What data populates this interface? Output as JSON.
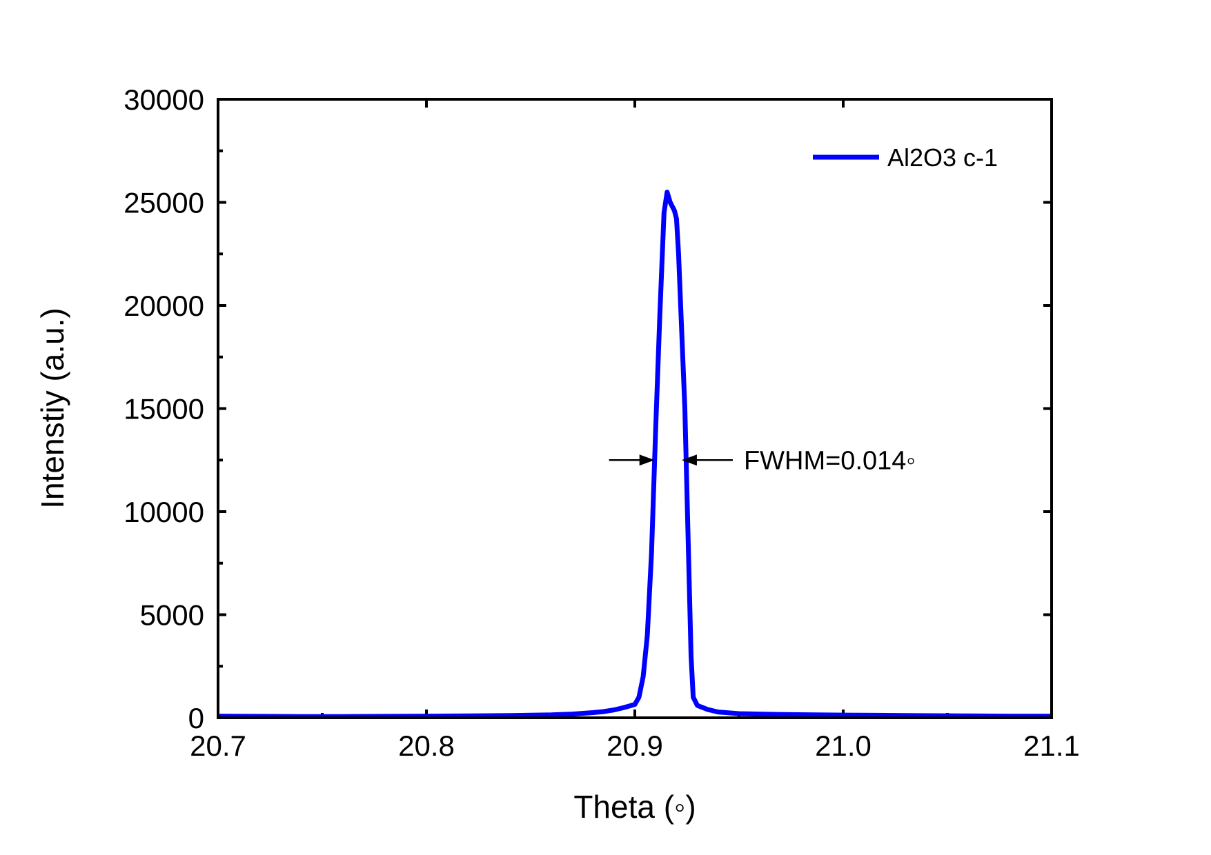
{
  "chart_data": {
    "type": "line",
    "title": "",
    "xlabel": "Theta (◦)",
    "ylabel": "Intenstiy (a.u.)",
    "xlim": [
      20.7,
      21.1
    ],
    "ylim": [
      0,
      30000
    ],
    "x_ticks": [
      20.7,
      20.8,
      20.9,
      21.0,
      21.1
    ],
    "x_tick_labels": [
      "20.7",
      "20.8",
      "20.9",
      "21.0",
      "21.1"
    ],
    "y_ticks": [
      0,
      5000,
      10000,
      15000,
      20000,
      25000,
      30000
    ],
    "y_tick_labels": [
      "0",
      "5000",
      "10000",
      "15000",
      "20000",
      "25000",
      "30000"
    ],
    "grid": false,
    "legend_position": "top-right",
    "series": [
      {
        "name": "Al2O3 c-1",
        "color": "#0000ff",
        "points": [
          [
            20.7,
            80
          ],
          [
            20.72,
            70
          ],
          [
            20.74,
            60
          ],
          [
            20.76,
            60
          ],
          [
            20.78,
            70
          ],
          [
            20.8,
            80
          ],
          [
            20.82,
            90
          ],
          [
            20.84,
            110
          ],
          [
            20.86,
            140
          ],
          [
            20.87,
            180
          ],
          [
            20.88,
            250
          ],
          [
            20.885,
            300
          ],
          [
            20.89,
            380
          ],
          [
            20.895,
            500
          ],
          [
            20.9,
            650
          ],
          [
            20.902,
            1000
          ],
          [
            20.904,
            2000
          ],
          [
            20.906,
            4000
          ],
          [
            20.908,
            8000
          ],
          [
            20.91,
            14000
          ],
          [
            20.912,
            19500
          ],
          [
            20.914,
            24500
          ],
          [
            20.9155,
            25500
          ],
          [
            20.917,
            25000
          ],
          [
            20.919,
            24600
          ],
          [
            20.92,
            24200
          ],
          [
            20.921,
            22500
          ],
          [
            20.922,
            20000
          ],
          [
            20.924,
            15000
          ],
          [
            20.926,
            7000
          ],
          [
            20.927,
            3000
          ],
          [
            20.928,
            1000
          ],
          [
            20.93,
            600
          ],
          [
            20.935,
            400
          ],
          [
            20.94,
            280
          ],
          [
            20.95,
            200
          ],
          [
            20.97,
            160
          ],
          [
            21.0,
            130
          ],
          [
            21.03,
            110
          ],
          [
            21.06,
            90
          ],
          [
            21.08,
            80
          ],
          [
            21.1,
            80
          ]
        ]
      }
    ],
    "annotations": [
      {
        "text": "FWHM=0.014◦",
        "arrow_left_x": 20.9095,
        "arrow_right_x": 20.9225,
        "y": 12500
      }
    ]
  }
}
